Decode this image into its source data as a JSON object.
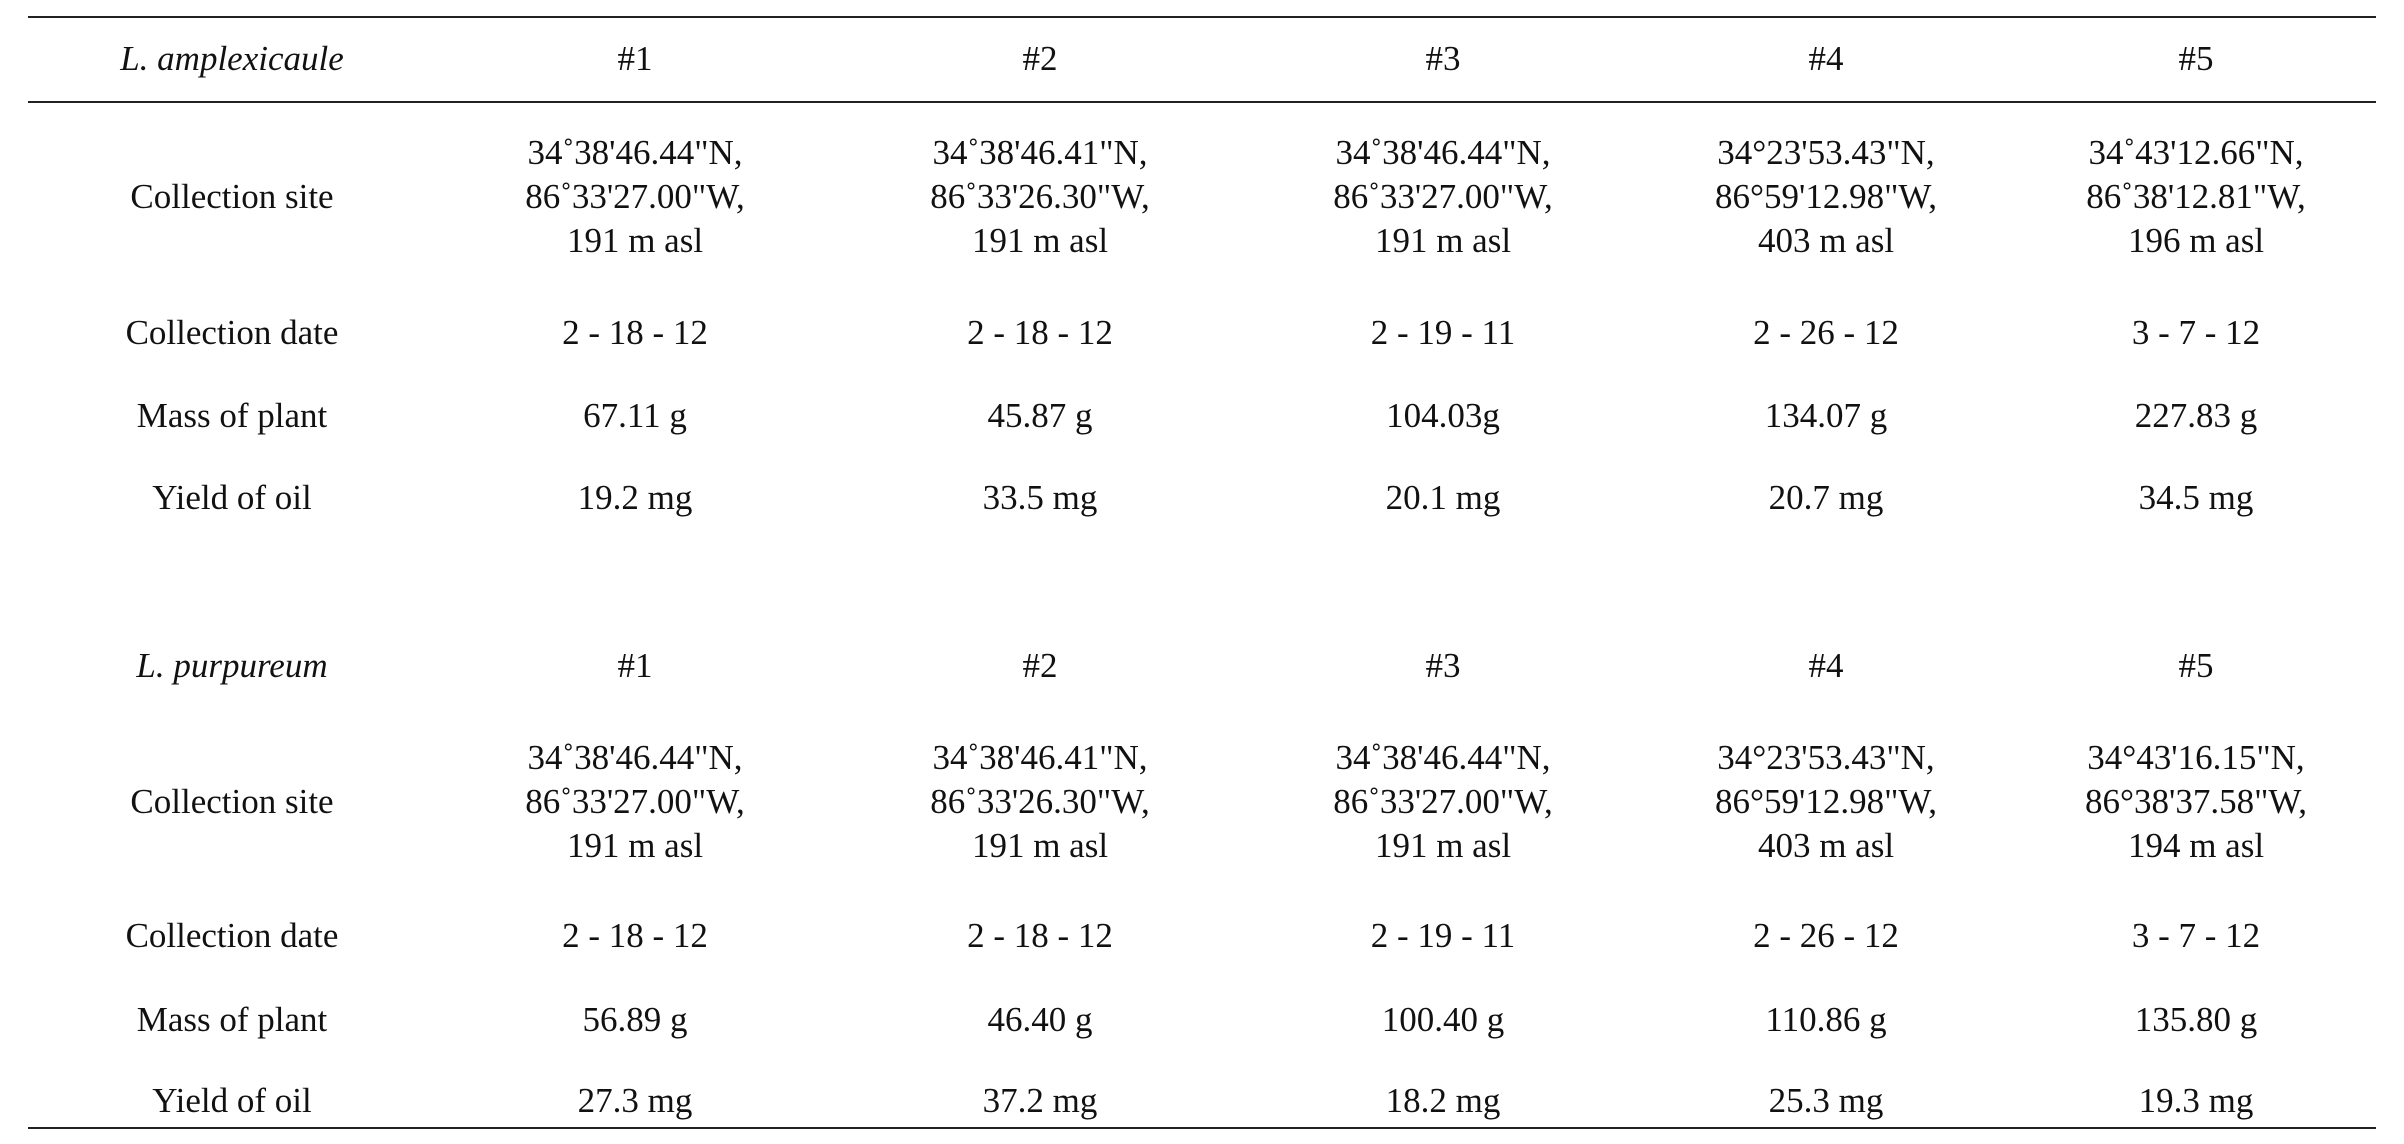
{
  "sections": [
    {
      "species": "L. amplexicaule",
      "columns": [
        "#1",
        "#2",
        "#3",
        "#4",
        "#5"
      ],
      "rows": [
        {
          "label": "Collection site",
          "values": [
            [
              "34˚38'46.44\"N,",
              "86˚33'27.00\"W,",
              "191 m asl"
            ],
            [
              "34˚38'46.41\"N,",
              "86˚33'26.30\"W,",
              "191 m asl"
            ],
            [
              "34˚38'46.44\"N,",
              "86˚33'27.00\"W,",
              "191 m asl"
            ],
            [
              "34°23'53.43\"N,",
              "86°59'12.98\"W,",
              "403 m asl"
            ],
            [
              "34˚43'12.66\"N,",
              "86˚38'12.81\"W,",
              "196 m asl"
            ]
          ]
        },
        {
          "label": "Collection date",
          "values": [
            [
              "2 - 18 - 12"
            ],
            [
              "2 - 18 - 12"
            ],
            [
              "2 - 19 - 11"
            ],
            [
              "2 - 26 - 12"
            ],
            [
              "3 - 7 - 12"
            ]
          ]
        },
        {
          "label": "Mass of plant",
          "values": [
            [
              "67.11 g"
            ],
            [
              "45.87 g"
            ],
            [
              "104.03g"
            ],
            [
              "134.07 g"
            ],
            [
              "227.83 g"
            ]
          ]
        },
        {
          "label": "Yield of oil",
          "values": [
            [
              "19.2 mg"
            ],
            [
              "33.5 mg"
            ],
            [
              "20.1 mg"
            ],
            [
              "20.7 mg"
            ],
            [
              "34.5 mg"
            ]
          ]
        }
      ]
    },
    {
      "species": "L. purpureum",
      "columns": [
        "#1",
        "#2",
        "#3",
        "#4",
        "#5"
      ],
      "rows": [
        {
          "label": "Collection site",
          "values": [
            [
              "34˚38'46.44\"N,",
              "86˚33'27.00\"W,",
              "191 m asl"
            ],
            [
              "34˚38'46.41\"N,",
              "86˚33'26.30\"W,",
              "191 m asl"
            ],
            [
              "34˚38'46.44\"N,",
              "86˚33'27.00\"W,",
              "191 m asl"
            ],
            [
              "34°23'53.43\"N,",
              "86°59'12.98\"W,",
              "403 m asl"
            ],
            [
              "34°43'16.15\"N,",
              "86°38'37.58\"W,",
              "194 m asl"
            ]
          ]
        },
        {
          "label": "Collection date",
          "values": [
            [
              "2 - 18 - 12"
            ],
            [
              "2 - 18 - 12"
            ],
            [
              "2 - 19 - 11"
            ],
            [
              "2 - 26 - 12"
            ],
            [
              "3 - 7 - 12"
            ]
          ]
        },
        {
          "label": "Mass of plant",
          "values": [
            [
              "56.89 g"
            ],
            [
              "46.40 g"
            ],
            [
              "100.40 g"
            ],
            [
              "110.86 g"
            ],
            [
              "135.80 g"
            ]
          ]
        },
        {
          "label": "Yield of oil",
          "values": [
            [
              "27.3 mg"
            ],
            [
              "37.2 mg"
            ],
            [
              "18.2 mg"
            ],
            [
              "25.3 mg"
            ],
            [
              "19.3 mg"
            ]
          ]
        }
      ]
    }
  ]
}
